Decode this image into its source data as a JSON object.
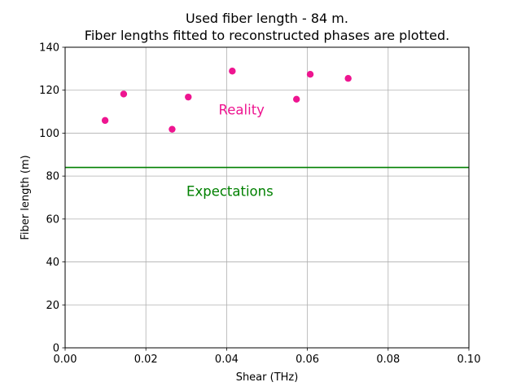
{
  "chart_data": {
    "type": "scatter",
    "title": "Used fiber length - 84 m.",
    "subtitle": "Fiber lengths fitted to reconstructed phases are plotted.",
    "xlabel": "Shear (THz)",
    "ylabel": "Fiber length (m)",
    "xlim": [
      0.0,
      0.1
    ],
    "ylim": [
      0,
      140
    ],
    "x_ticks": [
      "0.00",
      "0.02",
      "0.04",
      "0.06",
      "0.08",
      "0.10"
    ],
    "x_tick_values": [
      0.0,
      0.02,
      0.04,
      0.06,
      0.08,
      0.1
    ],
    "y_ticks": [
      "0",
      "20",
      "40",
      "60",
      "80",
      "100",
      "120",
      "140"
    ],
    "y_tick_values": [
      0,
      20,
      40,
      60,
      80,
      100,
      120,
      140
    ],
    "grid": true,
    "series": [
      {
        "kind": "scatter",
        "color": "#ee1590",
        "points": [
          {
            "x": 0.0099,
            "y": 105.9
          },
          {
            "x": 0.0145,
            "y": 118.2
          },
          {
            "x": 0.0265,
            "y": 101.8
          },
          {
            "x": 0.0305,
            "y": 116.8
          },
          {
            "x": 0.0414,
            "y": 128.9
          },
          {
            "x": 0.0573,
            "y": 115.8
          },
          {
            "x": 0.0607,
            "y": 127.4
          },
          {
            "x": 0.0701,
            "y": 125.5
          }
        ]
      },
      {
        "kind": "hline",
        "color": "#008000",
        "y": 84
      }
    ],
    "annotations": [
      {
        "text": "Reality",
        "x": 0.0437,
        "y": 111,
        "color": "#ee1590"
      },
      {
        "text": "Expectations",
        "x": 0.0408,
        "y": 73,
        "color": "#008000"
      }
    ]
  }
}
